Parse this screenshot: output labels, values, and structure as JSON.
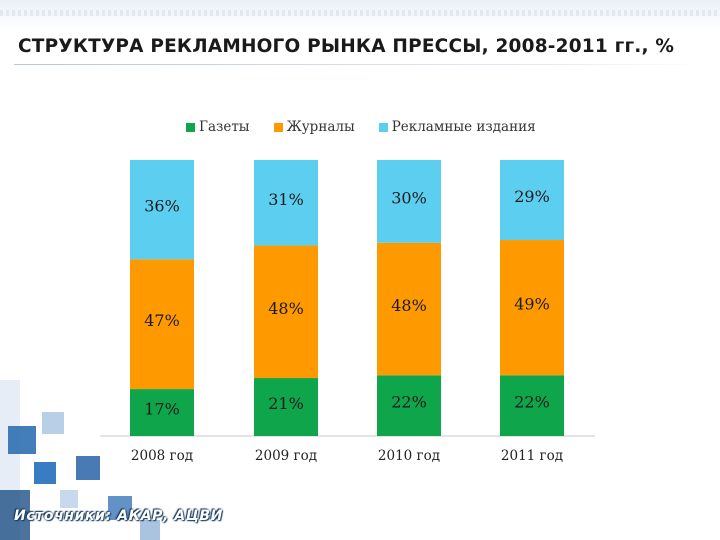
{
  "title": "СТРУКТУРА РЕКЛАМНОГО РЫНКА ПРЕССЫ, 2008-2011 гг., %",
  "source": "Источники: АКАР, АЦВИ",
  "colors": {
    "gazety": "#0fa64b",
    "zhurnaly": "#ff9900",
    "reklamnye": "#5ccff1",
    "decor": "#2f6fb3"
  },
  "legend": {
    "gazety": "Газеты",
    "zhurnaly": "Журналы",
    "reklamnye": "Рекламные издания"
  },
  "chart_data": {
    "type": "bar",
    "stacked": true,
    "percent_stacked": true,
    "title": "СТРУКТУРА РЕКЛАМНОГО РЫНКА ПРЕССЫ, 2008-2011 гг., %",
    "categories": [
      "2008 год",
      "2009 год",
      "2010 год",
      "2011 год"
    ],
    "series": [
      {
        "name": "Газеты",
        "values": [
          17,
          21,
          22,
          22
        ],
        "labels": [
          "17%",
          "21%",
          "22%",
          "22%"
        ]
      },
      {
        "name": "Журналы",
        "values": [
          47,
          48,
          48,
          49
        ],
        "labels": [
          "47%",
          "48%",
          "48%",
          "49%"
        ]
      },
      {
        "name": "Рекламные издания",
        "values": [
          36,
          31,
          30,
          29
        ],
        "labels": [
          "36%",
          "31%",
          "30%",
          "29%"
        ]
      }
    ],
    "ylim": [
      0,
      100
    ],
    "legend_position": "top",
    "grid": false
  }
}
